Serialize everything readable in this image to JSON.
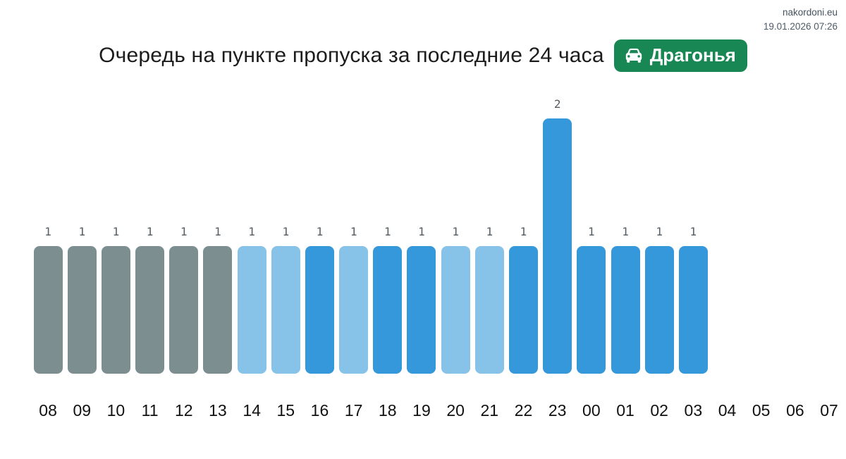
{
  "meta": {
    "site": "nakordoni.eu",
    "timestamp": "19.01.2026 07:26"
  },
  "header": {
    "title": "Очередь на пункте пропуска за последние 24 часа",
    "badge": {
      "label": "Драгонья",
      "icon": "car-front-icon",
      "color": "#198754",
      "text_color": "#ffffff"
    }
  },
  "chart_data": {
    "type": "bar",
    "title": "Очередь на пункте пропуска за последние 24 часа",
    "xlabel": "",
    "ylabel": "",
    "categories": [
      "08",
      "09",
      "10",
      "11",
      "12",
      "13",
      "14",
      "15",
      "16",
      "17",
      "18",
      "19",
      "20",
      "21",
      "22",
      "23",
      "00",
      "01",
      "02",
      "03",
      "04",
      "05",
      "06",
      "07"
    ],
    "values": [
      1,
      1,
      1,
      1,
      1,
      1,
      1,
      1,
      1,
      1,
      1,
      1,
      1,
      1,
      1,
      2,
      1,
      1,
      1,
      1,
      0,
      0,
      0,
      0
    ],
    "bar_colors": [
      "#7d8e91",
      "#7d8e91",
      "#7d8e91",
      "#7d8e91",
      "#7d8e91",
      "#7d8e91",
      "#87c2e8",
      "#87c2e8",
      "#3498db",
      "#87c2e8",
      "#3498db",
      "#3498db",
      "#87c2e8",
      "#87c2e8",
      "#3498db",
      "#3498db",
      "#3498db",
      "#3498db",
      "#3498db",
      "#3498db",
      null,
      null,
      null,
      null
    ],
    "palette": {
      "gray": "#7d8e91",
      "light_blue": "#87c2e8",
      "blue": "#3498db"
    },
    "value_label_color": "#555c62",
    "axis_label_color": "#111111",
    "ylim": [
      0,
      2
    ],
    "grid": false,
    "legend": false,
    "value_labels": true
  }
}
